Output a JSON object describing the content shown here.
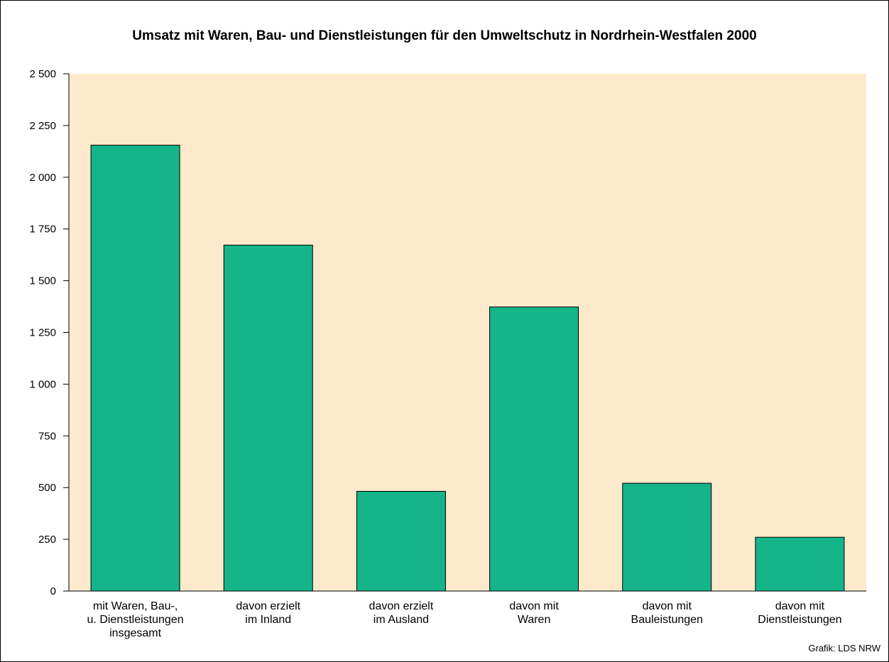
{
  "chart_data": {
    "type": "bar",
    "title": "Umsatz mit Waren, Bau- und Dienstleistungen für den Umweltschutz in Nordrhein-Westfalen 2000",
    "source": "Grafik: LDS NRW",
    "categories": [
      [
        "mit Waren, Bau-,",
        "u. Dienstleistungen",
        "insgesamt"
      ],
      [
        "davon erzielt",
        "im Inland"
      ],
      [
        "davon erzielt",
        "im Ausland"
      ],
      [
        "davon mit",
        "Waren"
      ],
      [
        "davon mit",
        "Bauleistungen"
      ],
      [
        "davon mit",
        "Dienstleistungen"
      ]
    ],
    "values": [
      2155,
      1672,
      482,
      1373,
      521,
      260
    ],
    "ylim": [
      0,
      2500
    ],
    "yticks": [
      0,
      250,
      500,
      750,
      1000,
      1250,
      1500,
      1750,
      2000,
      2250,
      2500
    ],
    "ytick_labels": [
      "0",
      "250",
      "500",
      "750",
      "1 000",
      "1 250",
      "1 500",
      "1 750",
      "2 000",
      "2 250",
      "2 500"
    ],
    "xlabel": "",
    "ylabel": "",
    "grid": false,
    "colors": {
      "plot_background": "#fde9cc",
      "bar": "#15b489",
      "bar_outline": "#000000"
    }
  }
}
